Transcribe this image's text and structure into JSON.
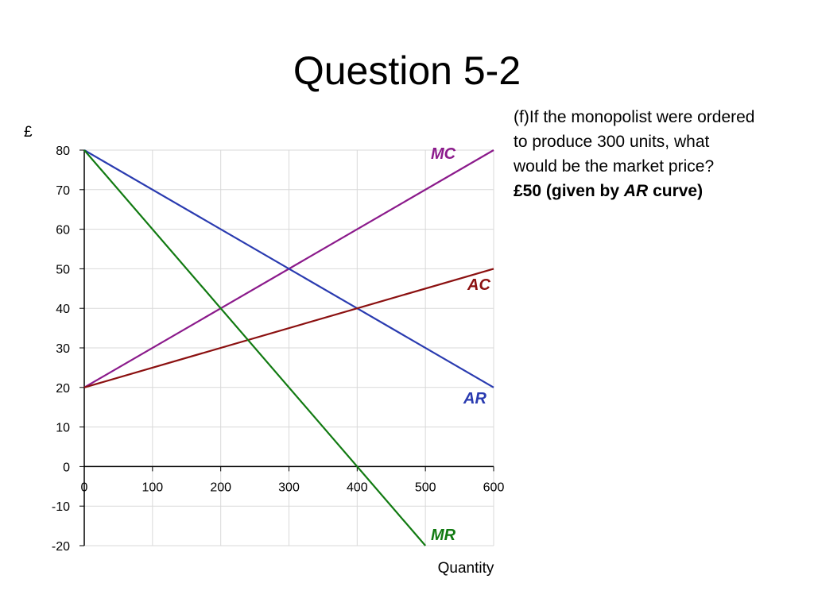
{
  "title": "Question 5-2",
  "question": {
    "line1": "(f)If the monopolist were ordered",
    "line2": "to produce 300 units, what",
    "line3": "would be the market price?",
    "answer_prefix": "£50 (given by ",
    "answer_em": "AR",
    "answer_suffix": " curve)"
  },
  "chart_data": {
    "type": "line",
    "xlabel": "Quantity",
    "ylabel": "£",
    "xlim": [
      0,
      600
    ],
    "ylim": [
      -20,
      80
    ],
    "xticks": [
      0,
      100,
      200,
      300,
      400,
      500,
      600
    ],
    "yticks": [
      -20,
      -10,
      0,
      10,
      20,
      30,
      40,
      50,
      60,
      70,
      80
    ],
    "grid": true,
    "series": [
      {
        "name": "MC",
        "color": "#8b1a8b",
        "x": [
          0,
          600
        ],
        "y": [
          20,
          80
        ]
      },
      {
        "name": "AR",
        "color": "#2a3bb0",
        "x": [
          0,
          600
        ],
        "y": [
          80,
          20
        ]
      },
      {
        "name": "AC",
        "color": "#8b1010",
        "x": [
          0,
          600
        ],
        "y": [
          20,
          50
        ]
      },
      {
        "name": "MR",
        "color": "#117a11",
        "x": [
          0,
          500
        ],
        "y": [
          80,
          -20
        ]
      }
    ]
  }
}
